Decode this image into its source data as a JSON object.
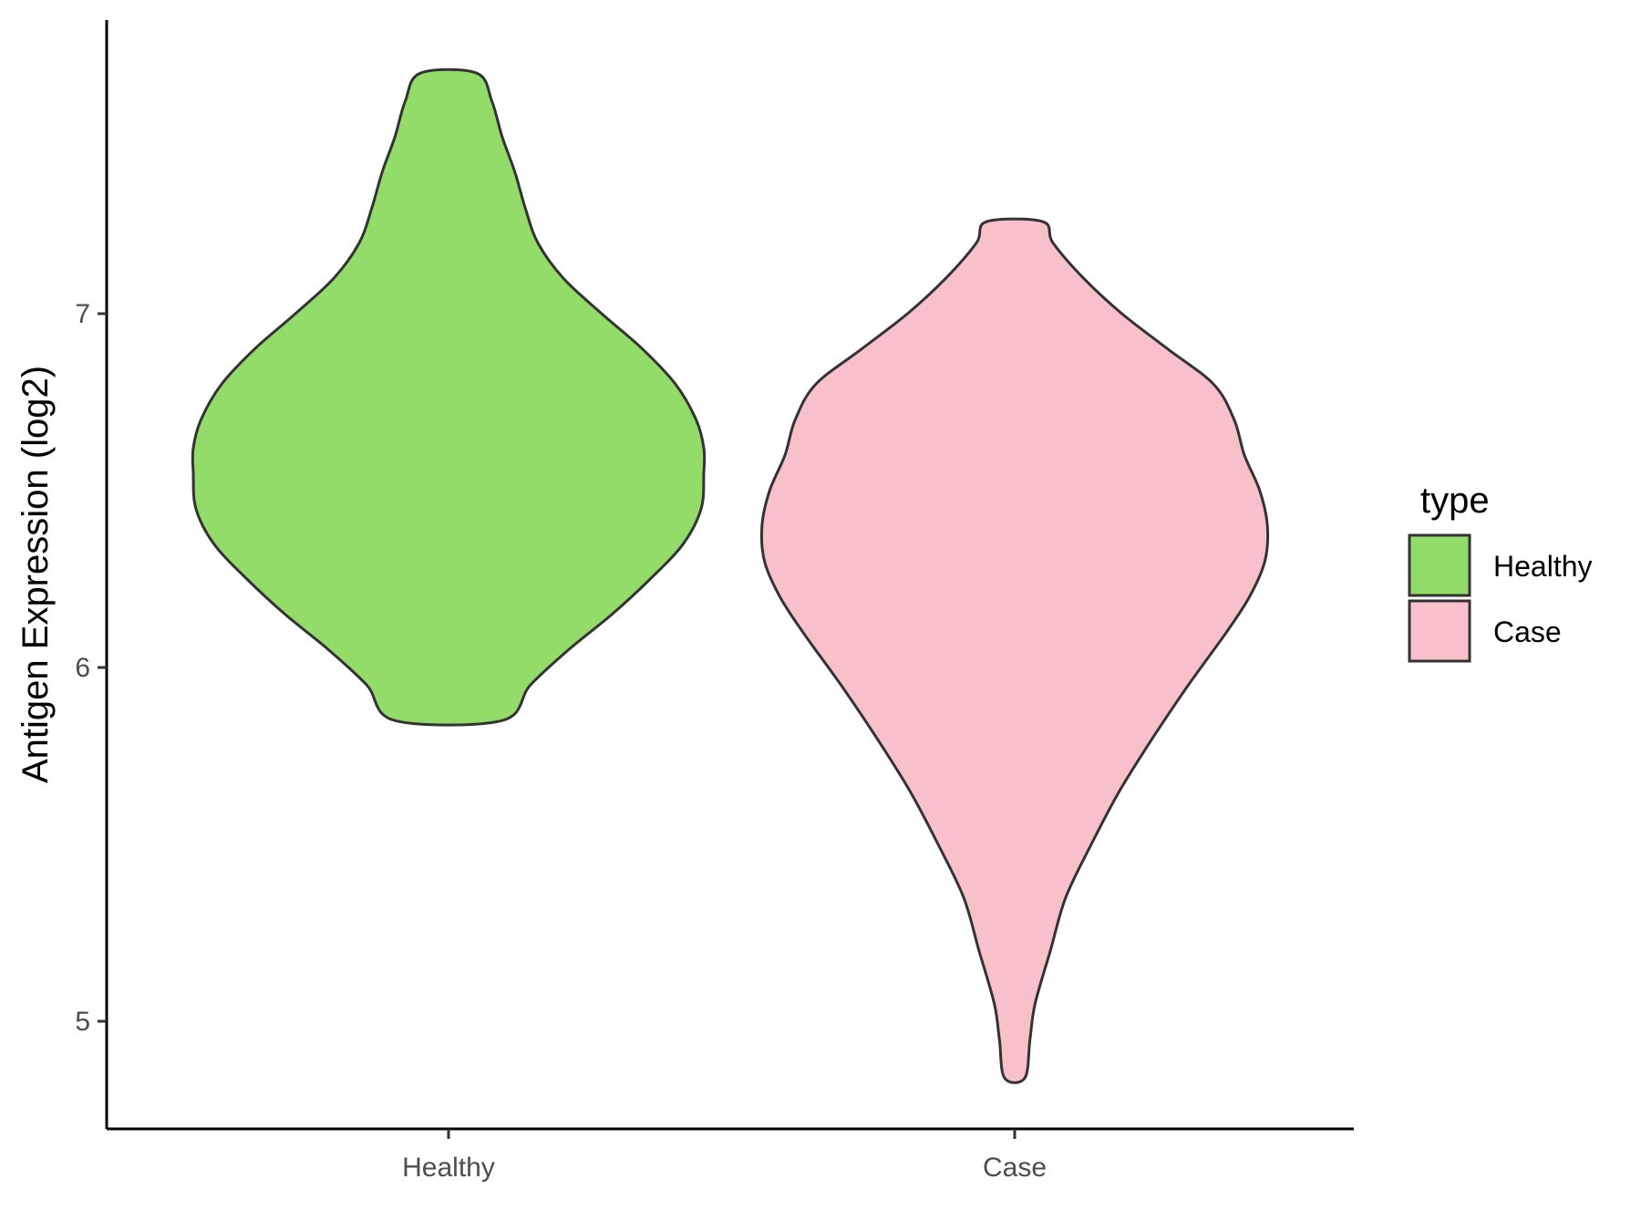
{
  "chart_data": {
    "type": "violin",
    "title": "",
    "xlabel": "",
    "ylabel": "Antigen Expression (log2)",
    "ylim": [
      4.7,
      7.82
    ],
    "yticks": [
      5,
      6,
      7
    ],
    "categories": [
      "Healthy",
      "Case"
    ],
    "grid": false,
    "legend": {
      "title": "type",
      "position": "right",
      "entries": [
        {
          "label": "Healthy",
          "color": "#93dc6a"
        },
        {
          "label": "Case",
          "color": "#f8c0cb"
        }
      ]
    },
    "series": [
      {
        "name": "Healthy",
        "color": "#93dc6a",
        "min": 5.85,
        "max": 7.68,
        "density_profile": [
          [
            5.85,
            0.21
          ],
          [
            5.95,
            0.32
          ],
          [
            6.05,
            0.47
          ],
          [
            6.15,
            0.64
          ],
          [
            6.25,
            0.79
          ],
          [
            6.35,
            0.92
          ],
          [
            6.45,
            0.99
          ],
          [
            6.55,
            1.0
          ],
          [
            6.62,
            1.0
          ],
          [
            6.7,
            0.97
          ],
          [
            6.8,
            0.89
          ],
          [
            6.9,
            0.76
          ],
          [
            7.0,
            0.6
          ],
          [
            7.1,
            0.45
          ],
          [
            7.2,
            0.35
          ],
          [
            7.3,
            0.3
          ],
          [
            7.4,
            0.26
          ],
          [
            7.5,
            0.21
          ],
          [
            7.6,
            0.17
          ],
          [
            7.68,
            0.11
          ]
        ]
      },
      {
        "name": "Case",
        "color": "#f8c0cb",
        "min": 4.84,
        "max": 7.26,
        "density_profile": [
          [
            4.84,
            0.04
          ],
          [
            4.95,
            0.06
          ],
          [
            5.05,
            0.08
          ],
          [
            5.2,
            0.14
          ],
          [
            5.35,
            0.2
          ],
          [
            5.5,
            0.3
          ],
          [
            5.65,
            0.41
          ],
          [
            5.8,
            0.54
          ],
          [
            5.95,
            0.68
          ],
          [
            6.1,
            0.83
          ],
          [
            6.2,
            0.92
          ],
          [
            6.3,
            0.98
          ],
          [
            6.4,
            0.99
          ],
          [
            6.5,
            0.96
          ],
          [
            6.6,
            0.9
          ],
          [
            6.7,
            0.86
          ],
          [
            6.8,
            0.78
          ],
          [
            6.9,
            0.6
          ],
          [
            7.0,
            0.42
          ],
          [
            7.1,
            0.27
          ],
          [
            7.2,
            0.15
          ],
          [
            7.26,
            0.11
          ]
        ]
      }
    ]
  }
}
